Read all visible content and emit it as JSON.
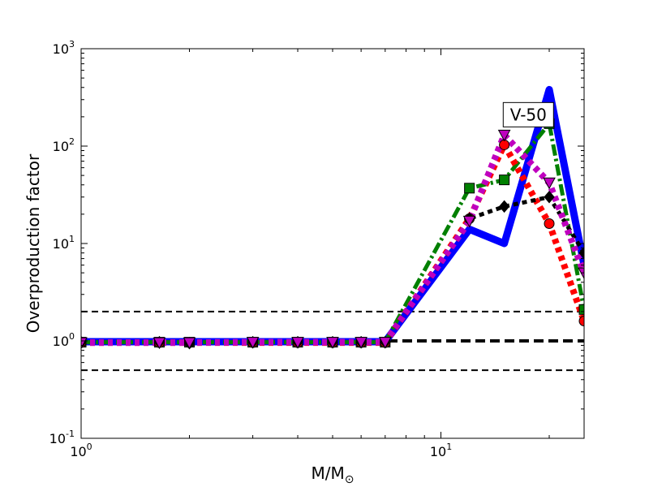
{
  "chart_data": {
    "type": "line",
    "title": "",
    "xlabel": "M/M",
    "xlabel_sub": "⊙",
    "ylabel": "Overproduction factor",
    "xscale": "log",
    "yscale": "log",
    "xlim": [
      1,
      25
    ],
    "ylim": [
      0.1,
      1000
    ],
    "grid": false,
    "legend": "none",
    "x_ticks": [
      {
        "value": 1,
        "base": "10",
        "exp": "0"
      },
      {
        "value": 10,
        "base": "10",
        "exp": "1"
      }
    ],
    "y_ticks": [
      {
        "value": 0.1,
        "base": "10",
        "exp": "-1"
      },
      {
        "value": 1,
        "base": "10",
        "exp": "0"
      },
      {
        "value": 10,
        "base": "10",
        "exp": "1"
      },
      {
        "value": 100,
        "base": "10",
        "exp": "2"
      },
      {
        "value": 1000,
        "base": "10",
        "exp": "3"
      }
    ],
    "annotation": {
      "text": "V-50",
      "x": 17.5,
      "y": 210
    },
    "reference_lines": [
      {
        "y": 2.0,
        "color": "#000000",
        "style": "dashed",
        "width": 2
      },
      {
        "y": 1.0,
        "color": "#000000",
        "style": "dashed",
        "width": 4
      },
      {
        "y": 0.5,
        "color": "#000000",
        "style": "dashed",
        "width": 2
      }
    ],
    "series": [
      {
        "color": "#0000ff",
        "style": "solid",
        "width": 9,
        "marker": "none",
        "x": [
          1,
          1.65,
          2,
          3,
          4,
          5,
          6,
          7,
          12,
          15,
          20,
          25
        ],
        "y": [
          0.98,
          0.98,
          0.98,
          0.98,
          0.98,
          0.98,
          0.98,
          0.98,
          14,
          10,
          380,
          6
        ]
      },
      {
        "color": "#008000",
        "style": "dashdot",
        "width": 5,
        "marker": "square",
        "x": [
          1,
          1.65,
          2,
          3,
          4,
          5,
          6,
          7,
          12,
          15,
          20,
          25
        ],
        "y": [
          0.97,
          0.97,
          0.97,
          0.97,
          0.97,
          0.97,
          0.97,
          0.97,
          37,
          45,
          170,
          2.1
        ]
      },
      {
        "color": "#ff0000",
        "style": "dotted",
        "width": 8,
        "marker": "circle",
        "x": [
          1,
          1.65,
          2,
          3,
          4,
          5,
          6,
          7,
          12,
          15,
          20,
          25
        ],
        "y": [
          0.96,
          0.96,
          0.96,
          0.96,
          0.96,
          0.96,
          0.96,
          0.96,
          18,
          103,
          16,
          1.6
        ]
      },
      {
        "color": "#000000",
        "style": "dotted",
        "width": 5,
        "marker": "diamond",
        "x": [
          1,
          1.65,
          2,
          3,
          4,
          5,
          6,
          7,
          12,
          15,
          20,
          25
        ],
        "y": [
          0.97,
          0.97,
          0.95,
          0.97,
          0.97,
          0.97,
          0.97,
          0.97,
          18,
          24,
          30,
          8
        ]
      },
      {
        "color": "#bf00bf",
        "style": "dotted",
        "width": 8,
        "marker": "triangle-down",
        "x": [
          1,
          1.65,
          2,
          3,
          4,
          5,
          6,
          7,
          12,
          15,
          20,
          25
        ],
        "y": [
          0.96,
          0.96,
          0.96,
          0.97,
          0.97,
          0.97,
          0.97,
          0.97,
          17,
          130,
          42,
          5
        ]
      }
    ]
  }
}
